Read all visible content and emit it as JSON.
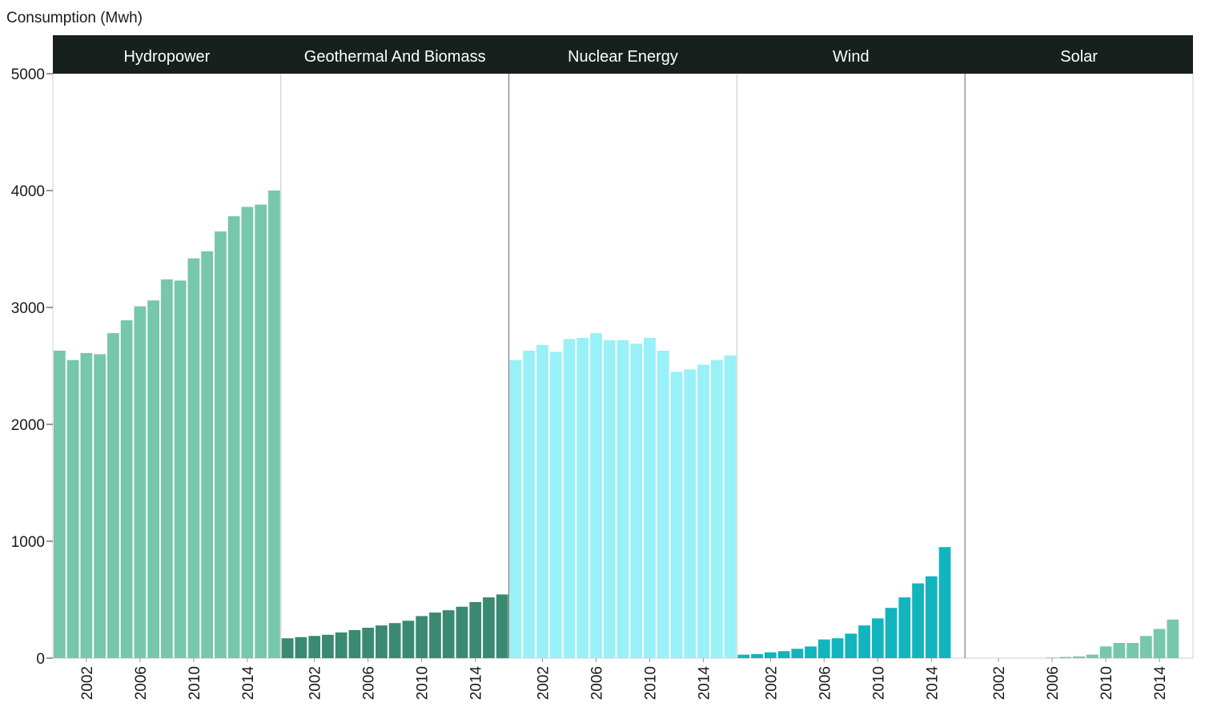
{
  "chart_data": {
    "type": "bar",
    "ylabel": "Consumption (Mwh)",
    "ylim": [
      0,
      5000
    ],
    "yticks": [
      0,
      1000,
      2000,
      3000,
      4000,
      5000
    ],
    "year_start": 2000,
    "year_end": 2016,
    "xticks": [
      2002,
      2006,
      2010,
      2014
    ],
    "header_color": "#17201d",
    "panels": [
      {
        "name": "Hydropower",
        "color": "#76c7ab",
        "values": [
          2630,
          2550,
          2610,
          2600,
          2780,
          2890,
          3010,
          3060,
          3240,
          3230,
          3420,
          3480,
          3650,
          3780,
          3860,
          3880,
          4000
        ]
      },
      {
        "name": "Geothermal And Biomass",
        "color": "#3a8a72",
        "values": [
          170,
          180,
          190,
          200,
          220,
          240,
          260,
          280,
          300,
          320,
          360,
          390,
          410,
          440,
          480,
          520,
          545
        ]
      },
      {
        "name": "Nuclear Energy",
        "color": "#97f1f7",
        "values": [
          2550,
          2630,
          2680,
          2620,
          2730,
          2740,
          2780,
          2720,
          2720,
          2690,
          2740,
          2630,
          2450,
          2470,
          2510,
          2550,
          2590
        ]
      },
      {
        "name": "Wind",
        "color": "#12b4bd",
        "values": [
          30,
          35,
          50,
          60,
          80,
          100,
          160,
          170,
          210,
          280,
          340,
          430,
          520,
          640,
          700,
          950,
          0
        ]
      },
      {
        "name": "Solar",
        "color": "#76c7ab",
        "values": [
          0,
          0,
          0,
          0,
          0,
          0,
          5,
          10,
          15,
          30,
          100,
          130,
          130,
          190,
          250,
          330,
          0
        ]
      }
    ]
  }
}
